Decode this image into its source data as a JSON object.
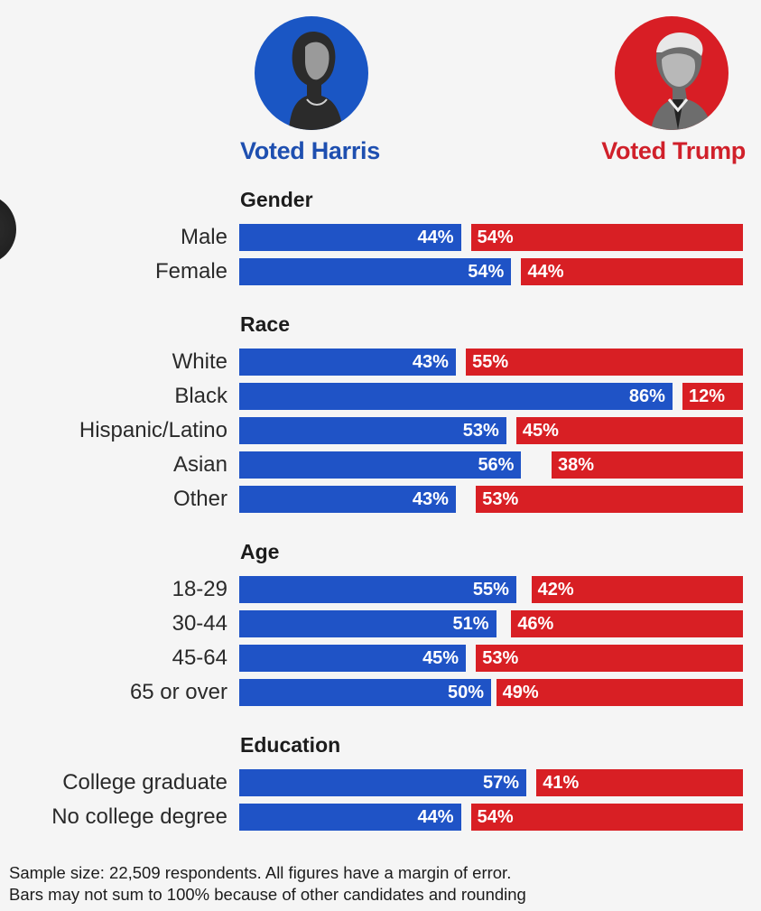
{
  "candidates": {
    "harris": {
      "label": "Voted Harris",
      "color": "#1f53c6",
      "portrait_icon": "harris-portrait"
    },
    "trump": {
      "label": "Voted Trump",
      "color": "#d81f24",
      "portrait_icon": "trump-portrait"
    }
  },
  "footnote": {
    "line1": "Sample size: 22,509 respondents. All figures have a margin of error.",
    "line2": "Bars may not sum to 100% because of other candidates and rounding"
  },
  "chart_data": {
    "type": "bar",
    "orientation": "horizontal-diverging",
    "title": "",
    "xlabel": "",
    "ylabel": "",
    "xlim": [
      0,
      100
    ],
    "unit": "%",
    "series": [
      {
        "name": "Voted Harris",
        "color": "#1f53c6"
      },
      {
        "name": "Voted Trump",
        "color": "#d81f24"
      }
    ],
    "groups": [
      {
        "title": "Gender",
        "rows": [
          {
            "label": "Male",
            "harris": 44,
            "trump": 54
          },
          {
            "label": "Female",
            "harris": 54,
            "trump": 44
          }
        ]
      },
      {
        "title": "Race",
        "rows": [
          {
            "label": "White",
            "harris": 43,
            "trump": 55
          },
          {
            "label": "Black",
            "harris": 86,
            "trump": 12
          },
          {
            "label": "Hispanic/Latino",
            "harris": 53,
            "trump": 45
          },
          {
            "label": "Asian",
            "harris": 56,
            "trump": 38
          },
          {
            "label": "Other",
            "harris": 43,
            "trump": 53
          }
        ]
      },
      {
        "title": "Age",
        "rows": [
          {
            "label": "18-29",
            "harris": 55,
            "trump": 42
          },
          {
            "label": "30-44",
            "harris": 51,
            "trump": 46
          },
          {
            "label": "45-64",
            "harris": 45,
            "trump": 53
          },
          {
            "label": "65 or over",
            "harris": 50,
            "trump": 49
          }
        ]
      },
      {
        "title": "Education",
        "rows": [
          {
            "label": "College graduate",
            "harris": 57,
            "trump": 41
          },
          {
            "label": "No college degree",
            "harris": 44,
            "trump": 54
          }
        ]
      }
    ]
  }
}
